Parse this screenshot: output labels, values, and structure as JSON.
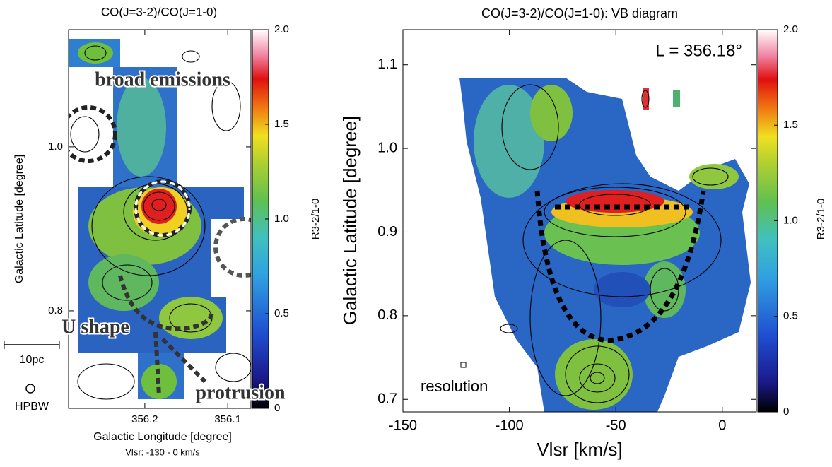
{
  "chart_data": [
    {
      "type": "heatmap",
      "title": "CO(J=3-2)/CO(J=1-0)",
      "subtitle": "Vlsr: -130 - 0 km/s",
      "x_label": "Galactic Longitude [degree]",
      "y_label": "Galactic Latitude [degree]",
      "xlim": [
        356.292,
        356.072
      ],
      "xticks": [
        356.2,
        356.1
      ],
      "ylim": [
        0.681,
        1.143
      ],
      "yticks": [
        {
          "value": 1.0,
          "label": "1.0"
        },
        0.8
      ],
      "colorbar_label": "R3-2/1-0",
      "clim": [
        0,
        2
      ],
      "cticks": [
        0,
        0.5,
        {
          "value": 1.0,
          "label": "1.0"
        },
        1.5,
        {
          "value": 2.0,
          "label": "2.0"
        }
      ],
      "annotations": [
        "broad emissions",
        "U shape",
        "protrusion",
        "10pc",
        "HPBW"
      ]
    },
    {
      "type": "heatmap",
      "title": "CO(J=3-2)/CO(J=1-0): VB diagram",
      "x_label": "Vlsr [km/s]",
      "y_label": "Galactic Latitude [degree]",
      "xlim": [
        -150,
        16
      ],
      "xticks": [
        -150,
        -100,
        -50,
        0
      ],
      "ylim": [
        0.685,
        1.142
      ],
      "yticks": [
        0.7,
        0.8,
        0.9,
        {
          "value": 1.0,
          "label": "1.0"
        },
        1.1
      ],
      "colorbar_label": "R3-2/1-0",
      "clim": [
        0,
        2
      ],
      "cticks": [
        0,
        0.5,
        {
          "value": 1.0,
          "label": "1.0"
        },
        1.5,
        {
          "value": 2.0,
          "label": "2.0"
        }
      ],
      "annotations": [
        "L = 356.18°",
        "resolution"
      ]
    }
  ]
}
